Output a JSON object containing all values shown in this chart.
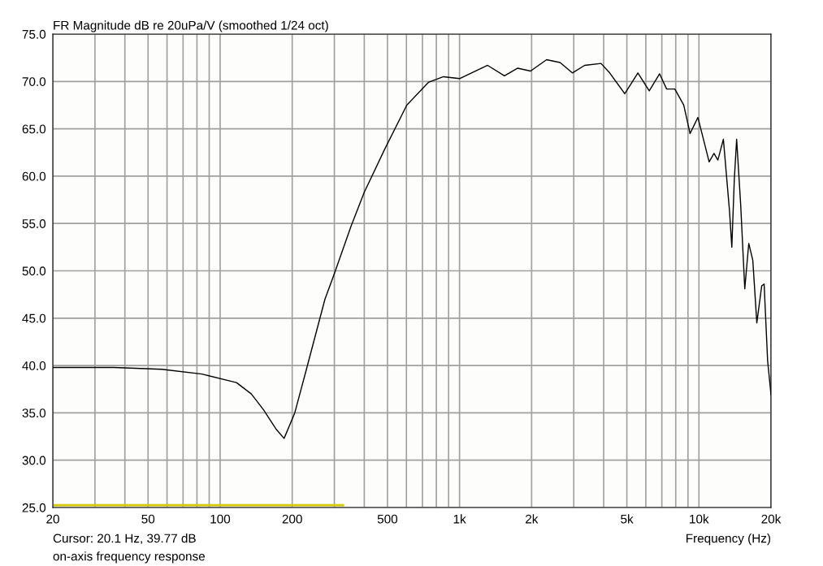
{
  "chart_data": {
    "type": "line",
    "title": "FR Magnitude dB re 20uPa/V (smoothed 1/24 oct)",
    "xlabel": "Frequency (Hz)",
    "annotations": [
      "Cursor: 20.1 Hz, 39.77 dB",
      "on-axis frequency response"
    ],
    "log": "x",
    "grid": true,
    "line_style": "solid",
    "marker": "none",
    "xlim": [
      20,
      20000
    ],
    "ylim": [
      25,
      75
    ],
    "xticks": [
      20,
      {
        "value": 30,
        "label": null
      },
      {
        "value": 40,
        "label": null
      },
      50,
      {
        "value": 60,
        "label": null
      },
      {
        "value": 70,
        "label": null
      },
      {
        "value": 80,
        "label": null
      },
      {
        "value": 90,
        "label": null
      },
      100,
      200,
      {
        "value": 300,
        "label": null
      },
      {
        "value": 400,
        "label": null
      },
      500,
      {
        "value": 600,
        "label": null
      },
      {
        "value": 700,
        "label": null
      },
      {
        "value": 800,
        "label": null
      },
      {
        "value": 900,
        "label": null
      },
      {
        "value": 1000,
        "label": "1k"
      },
      {
        "value": 2000,
        "label": "2k"
      },
      {
        "value": 3000,
        "label": null
      },
      {
        "value": 4000,
        "label": null
      },
      {
        "value": 5000,
        "label": "5k"
      },
      {
        "value": 6000,
        "label": null
      },
      {
        "value": 7000,
        "label": null
      },
      {
        "value": 8000,
        "label": null
      },
      {
        "value": 9000,
        "label": null
      },
      {
        "value": 10000,
        "label": "10k"
      },
      {
        "value": 20000,
        "label": "20k"
      }
    ],
    "yticks": [
      {
        "value": 25,
        "label": "25.0"
      },
      {
        "value": 30,
        "label": "30.0"
      },
      {
        "value": 35,
        "label": "35.0"
      },
      {
        "value": 40,
        "label": "40.0"
      },
      {
        "value": 45,
        "label": "45.0"
      },
      {
        "value": 50,
        "label": "50.0"
      },
      {
        "value": 55,
        "label": "55.0"
      },
      {
        "value": 60,
        "label": "60.0"
      },
      {
        "value": 65,
        "label": "65.0"
      },
      {
        "value": 70,
        "label": "70.0"
      },
      {
        "value": 75,
        "label": "75.0"
      }
    ],
    "series": [
      {
        "color": "#000000",
        "x": [
          20,
          36,
          57,
          84,
          117,
          135,
          152,
          171,
          185,
          205,
          231,
          274,
          300,
          352,
          400,
          488,
          602,
          741,
          857,
          1000,
          1310,
          1540,
          1750,
          1980,
          2310,
          2630,
          2960,
          3330,
          3900,
          4240,
          4900,
          5560,
          6200,
          6850,
          7330,
          7930,
          8640,
          9180,
          9900,
          10440,
          11030,
          11560,
          12000,
          12650,
          13420,
          13720,
          14050,
          14370,
          14940,
          15540,
          16150,
          16790,
          17450,
          18290,
          18720,
          19360,
          20000
        ],
        "values": [
          39.8,
          39.8,
          39.6,
          39.1,
          38.2,
          37.0,
          35.3,
          33.3,
          32.3,
          35.0,
          39.9,
          47.0,
          49.7,
          54.7,
          58.3,
          62.9,
          67.5,
          69.9,
          70.5,
          70.3,
          71.7,
          70.6,
          71.4,
          71.1,
          72.3,
          72.0,
          70.9,
          71.7,
          71.9,
          70.9,
          68.7,
          70.9,
          69.0,
          70.8,
          69.2,
          69.2,
          67.5,
          64.5,
          66.2,
          63.9,
          61.5,
          62.4,
          61.7,
          63.9,
          56.3,
          52.5,
          59.6,
          63.9,
          57.0,
          48.1,
          52.9,
          51.1,
          44.5,
          48.4,
          48.6,
          40.5,
          36.9
        ]
      },
      {
        "color": "#d4c800",
        "x": [
          20,
          326
        ],
        "values": [
          25.25,
          25.25
        ]
      }
    ]
  }
}
